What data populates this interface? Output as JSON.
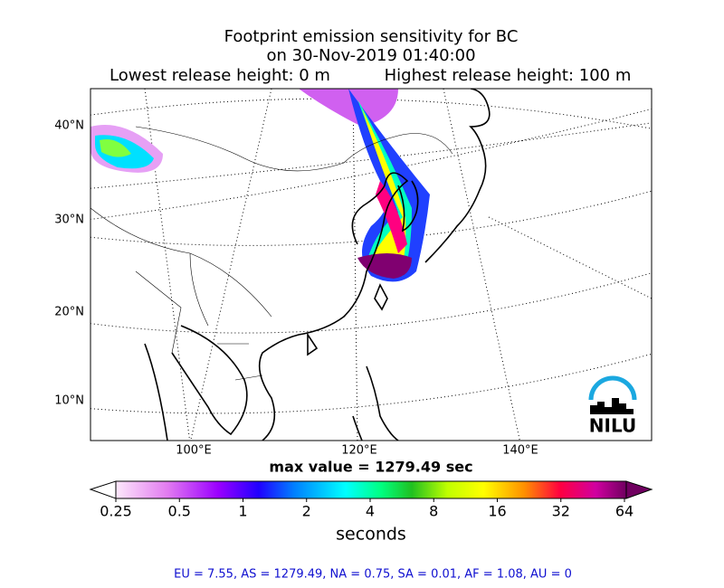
{
  "header": {
    "title": "Footprint emission sensitivity for BC",
    "date": "on 30-Nov-2019 01:40:00",
    "lowest": "Lowest release height: 0 m",
    "highest": "Highest release height: 100 m"
  },
  "map": {
    "lat_labels": [
      "40°N",
      "30°N",
      "20°N",
      "10°N"
    ],
    "lon_labels": [
      "100°E",
      "120°E",
      "140°E"
    ],
    "logo": "NILU"
  },
  "max_value": "max value = 1279.49 sec",
  "colorbar": {
    "ticks": [
      0.25,
      0.5,
      1,
      2,
      4,
      8,
      16,
      32,
      64
    ],
    "label": "seconds"
  },
  "footer": "EU = 7.55,  AS = 1279.49,  NA = 0.75,  SA = 0.01,  AF = 1.08,  AU = 0"
}
